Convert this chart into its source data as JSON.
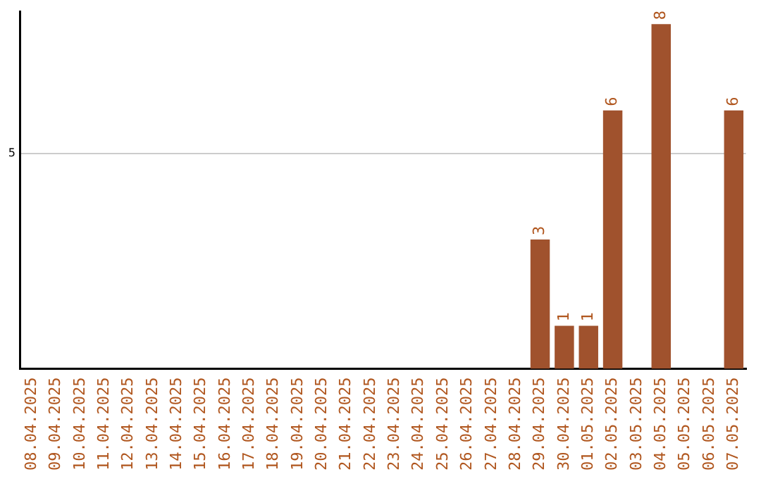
{
  "chart_data": {
    "type": "bar",
    "categories": [
      "08.04.2025",
      "09.04.2025",
      "10.04.2025",
      "11.04.2025",
      "12.04.2025",
      "13.04.2025",
      "14.04.2025",
      "15.04.2025",
      "16.04.2025",
      "17.04.2025",
      "18.04.2025",
      "19.04.2025",
      "20.04.2025",
      "21.04.2025",
      "22.04.2025",
      "23.04.2025",
      "24.04.2025",
      "25.04.2025",
      "26.04.2025",
      "27.04.2025",
      "28.04.2025",
      "29.04.2025",
      "30.04.2025",
      "01.05.2025",
      "02.05.2025",
      "03.05.2025",
      "04.05.2025",
      "05.05.2025",
      "06.05.2025",
      "07.05.2025"
    ],
    "values": [
      null,
      null,
      null,
      null,
      null,
      null,
      null,
      null,
      null,
      null,
      null,
      null,
      null,
      null,
      null,
      null,
      null,
      null,
      null,
      null,
      null,
      3,
      1,
      1,
      6,
      null,
      8,
      null,
      null,
      6
    ],
    "data_labels": true,
    "color": "#a0522d",
    "ylim": [
      0,
      8.3
    ],
    "yticks": [
      5
    ],
    "grid": "y",
    "legend": false
  }
}
